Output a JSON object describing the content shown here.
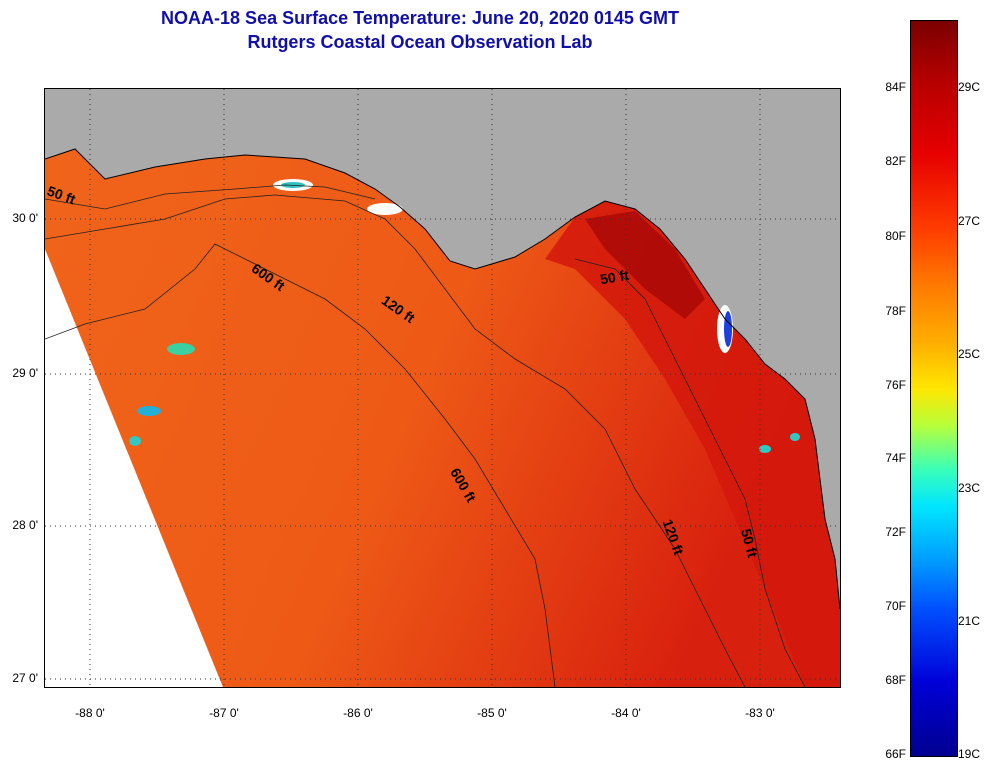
{
  "title_line1": "NOAA-18 Sea Surface Temperature:  June 20, 2020 0145 GMT",
  "title_line2": "Rutgers Coastal Ocean Observation Lab",
  "lat_labels": [
    "30 0'",
    "29 0'",
    "28 0'",
    "27 0'"
  ],
  "lon_labels": [
    "-88 0'",
    "-87 0'",
    "-86 0'",
    "-85 0'",
    "-84 0'",
    "-83 0'"
  ],
  "contour_labels": [
    "50 ft",
    "600 ft",
    "120 ft",
    "50 ft",
    "600 ft",
    "120 ft",
    "50 ft"
  ],
  "colorbar": {
    "fahrenheit": [
      "84F",
      "82F",
      "80F",
      "78F",
      "76F",
      "74F",
      "72F",
      "70F",
      "68F",
      "66F"
    ],
    "celsius": [
      "29C",
      "27C",
      "25C",
      "23C",
      "21C",
      "19C"
    ]
  },
  "colors": {
    "land": "#aaaaaa",
    "sea_warm": "#f05a14",
    "sea_hot": "#d81c10",
    "title": "#1010a8"
  }
}
